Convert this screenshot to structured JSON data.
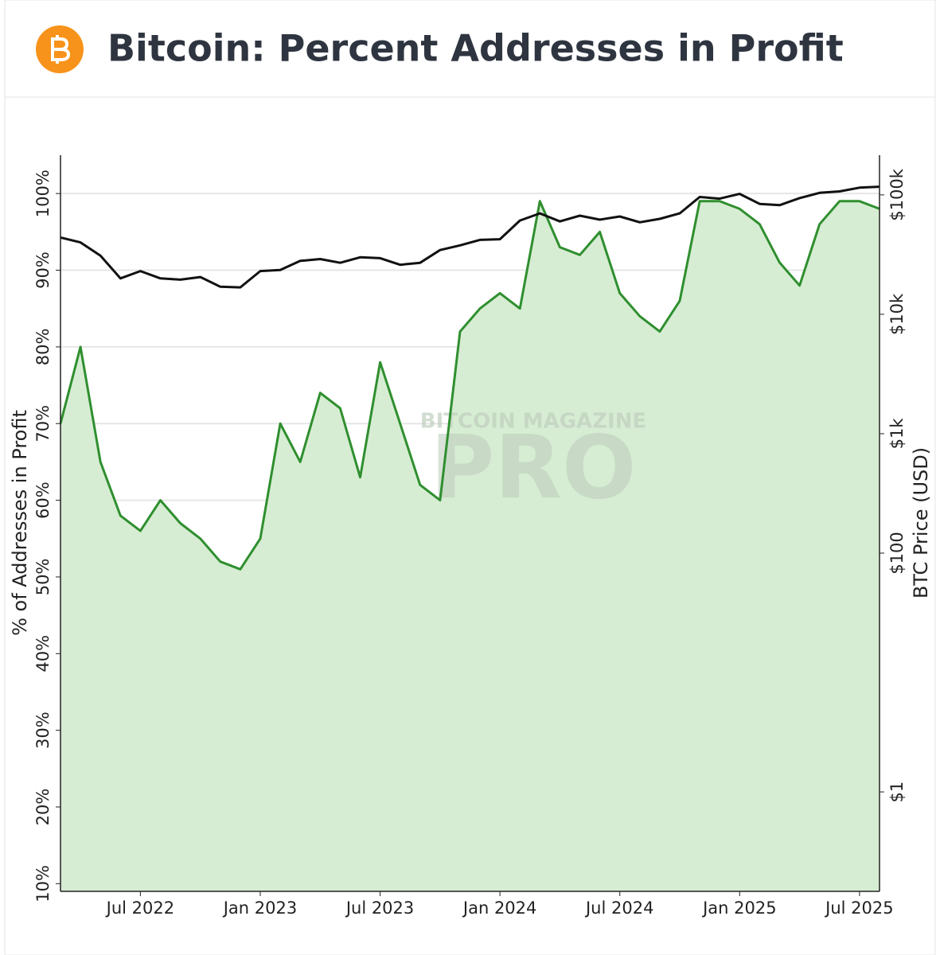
{
  "chart_data": {
    "type": "line",
    "title": "Bitcoin: Percent Addresses in Profit",
    "watermark": [
      "BITCOIN MAGAZINE",
      "PRO"
    ],
    "y_label": "% of Addresses in Profit",
    "y2_label": "BTC Price (USD)",
    "x": [
      "2022-03",
      "2022-04",
      "2022-05",
      "2022-06",
      "2022-07",
      "2022-08",
      "2022-09",
      "2022-10",
      "2022-11",
      "2022-12",
      "2023-01",
      "2023-02",
      "2023-03",
      "2023-04",
      "2023-05",
      "2023-06",
      "2023-07",
      "2023-08",
      "2023-09",
      "2023-10",
      "2023-11",
      "2023-12",
      "2024-01",
      "2024-02",
      "2024-03",
      "2024-04",
      "2024-05",
      "2024-06",
      "2024-07",
      "2024-08",
      "2024-09",
      "2024-10",
      "2024-11",
      "2024-12",
      "2025-01",
      "2025-02",
      "2025-03",
      "2025-04",
      "2025-05",
      "2025-06",
      "2025-07",
      "2025-08"
    ],
    "xlim": [
      "2022-03",
      "2025-08"
    ],
    "xticks": [
      {
        "value": "2022-07",
        "label": "Jul 2022"
      },
      {
        "value": "2023-01",
        "label": "Jan 2023"
      },
      {
        "value": "2023-07",
        "label": "Jul 2023"
      },
      {
        "value": "2024-01",
        "label": "Jan 2024"
      },
      {
        "value": "2024-07",
        "label": "Jul 2024"
      },
      {
        "value": "2025-01",
        "label": "Jan 2025"
      },
      {
        "value": "2025-07",
        "label": "Jul 2025"
      }
    ],
    "ylim": [
      9,
      105
    ],
    "yticks": [
      {
        "value": 10,
        "label": "10%"
      },
      {
        "value": 20,
        "label": "20%"
      },
      {
        "value": 30,
        "label": "30%"
      },
      {
        "value": 40,
        "label": "40%"
      },
      {
        "value": 50,
        "label": "50%"
      },
      {
        "value": 60,
        "label": "60%"
      },
      {
        "value": 70,
        "label": "70%"
      },
      {
        "value": 80,
        "label": "80%"
      },
      {
        "value": 90,
        "label": "90%"
      },
      {
        "value": 100,
        "label": "100%"
      }
    ],
    "y2lim": [
      0.147,
      215000
    ],
    "y2_scale": "log",
    "y2ticks": [
      {
        "value": 1,
        "label": "$1"
      },
      {
        "value": 100,
        "label": "$100"
      },
      {
        "value": 1000,
        "label": "$1k"
      },
      {
        "value": 10000,
        "label": "$10k"
      },
      {
        "value": 100000,
        "label": "$100k"
      }
    ],
    "grid": true,
    "series": [
      {
        "color": "#2f8f2f",
        "fill": "#d7edd3",
        "values": [
          70,
          80,
          65,
          58,
          56,
          60,
          57,
          55,
          52,
          51,
          55,
          70,
          65,
          74,
          72,
          63,
          78,
          70,
          62,
          60,
          82,
          85,
          87,
          85,
          99,
          93,
          92,
          95,
          87,
          84,
          82,
          86,
          99,
          99,
          98,
          96,
          91,
          88,
          96,
          99,
          99,
          98
        ]
      },
      {
        "color": "#111111",
        "axis": "y2",
        "values": [
          44000,
          40000,
          31000,
          20000,
          23000,
          20000,
          19500,
          20500,
          17000,
          16800,
          23000,
          23500,
          28000,
          29000,
          27000,
          30000,
          29500,
          26000,
          27000,
          34500,
          37800,
          42000,
          42500,
          61000,
          70000,
          60000,
          67000,
          62000,
          66000,
          59000,
          63000,
          70000,
          96000,
          93000,
          102000,
          84000,
          82000,
          94000,
          104000,
          107000,
          115000,
          117000
        ]
      }
    ]
  }
}
